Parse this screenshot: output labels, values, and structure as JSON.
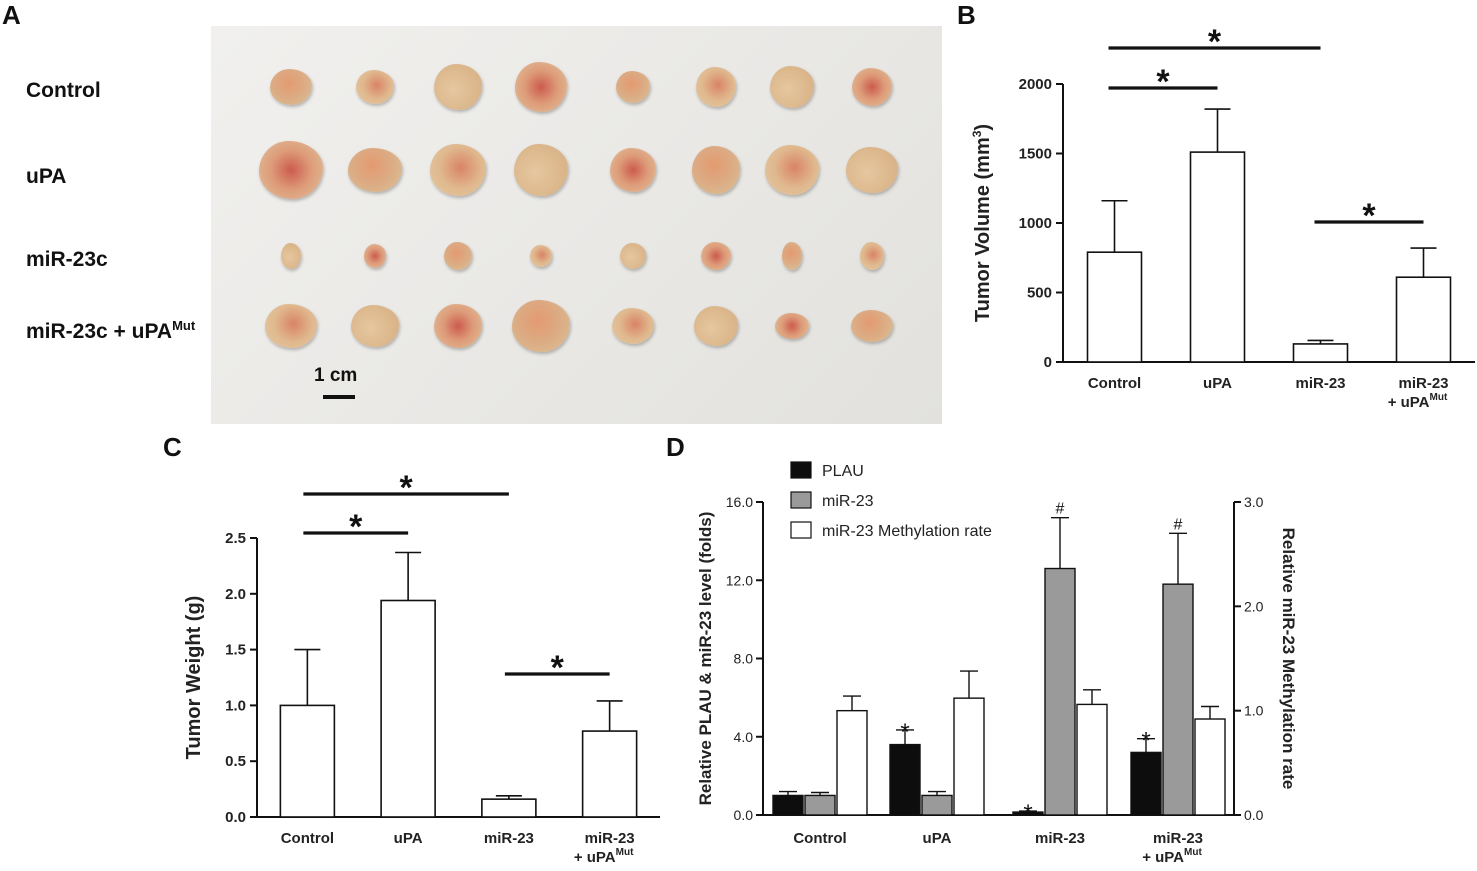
{
  "panel_letters": {
    "a": "A",
    "b": "B",
    "c": "C",
    "d": "D"
  },
  "panel_a": {
    "row_labels": [
      {
        "text": "Control",
        "sup": ""
      },
      {
        "text": "uPA",
        "sup": ""
      },
      {
        "text": "miR-23c",
        "sup": ""
      },
      {
        "text": "miR-23c + uPA",
        "sup": "Mut"
      }
    ],
    "scale_label": "1 cm"
  },
  "chart_data": [
    {
      "id": "B",
      "type": "bar",
      "categories": [
        {
          "line1": "Control",
          "line2": "",
          "sup": ""
        },
        {
          "line1": "uPA",
          "line2": "",
          "sup": ""
        },
        {
          "line1": "miR-23",
          "line2": "",
          "sup": ""
        },
        {
          "line1": "miR-23",
          "line2": "+ uPA",
          "sup": "Mut"
        }
      ],
      "values": [
        790,
        1510,
        130,
        610
      ],
      "errors": [
        370,
        310,
        25,
        210
      ],
      "ylabel": "Tumor Volume (mm",
      "ylabel_sup": "3",
      "ylabel_close": ")",
      "ylim": [
        0,
        2000
      ],
      "yticks": [
        {
          "v": 0,
          "label": "0"
        },
        {
          "v": 500,
          "label": "500"
        },
        {
          "v": 1000,
          "label": "1000"
        },
        {
          "v": 1500,
          "label": "1500"
        },
        {
          "v": 2000,
          "label": "2000"
        }
      ],
      "significance": [
        {
          "from": 0,
          "to": 2,
          "label": "*"
        },
        {
          "from": 0,
          "to": 1,
          "label": "*"
        },
        {
          "from": 2,
          "to": 3,
          "label": "*"
        }
      ]
    },
    {
      "id": "C",
      "type": "bar",
      "categories": [
        {
          "line1": "Control",
          "line2": "",
          "sup": ""
        },
        {
          "line1": "uPA",
          "line2": "",
          "sup": ""
        },
        {
          "line1": "miR-23",
          "line2": "",
          "sup": ""
        },
        {
          "line1": "miR-23",
          "line2": "+ uPA",
          "sup": "Mut"
        }
      ],
      "values": [
        1.0,
        1.94,
        0.16,
        0.77
      ],
      "errors": [
        0.5,
        0.43,
        0.03,
        0.27
      ],
      "ylabel": "Tumor Weight (g)",
      "ylim": [
        0,
        2.5
      ],
      "yticks": [
        {
          "v": 0,
          "label": "0.0"
        },
        {
          "v": 0.5,
          "label": "0.5"
        },
        {
          "v": 1.0,
          "label": "1.0"
        },
        {
          "v": 1.5,
          "label": "1.5"
        },
        {
          "v": 2.0,
          "label": "2.0"
        },
        {
          "v": 2.5,
          "label": "2.5"
        }
      ],
      "significance": [
        {
          "from": 0,
          "to": 2,
          "label": "*"
        },
        {
          "from": 0,
          "to": 1,
          "label": "*"
        },
        {
          "from": 2,
          "to": 3,
          "label": "*"
        }
      ]
    },
    {
      "id": "D",
      "type": "bar",
      "categories": [
        {
          "line1": "Control",
          "line2": "",
          "sup": ""
        },
        {
          "line1": "uPA",
          "line2": "",
          "sup": ""
        },
        {
          "line1": "miR-23",
          "line2": "",
          "sup": ""
        },
        {
          "line1": "miR-23",
          "line2": "+ uPA",
          "sup": "Mut"
        }
      ],
      "series": [
        {
          "name": "PLAU",
          "axis": "left",
          "color": "#0d0d0d",
          "values": [
            1.0,
            3.6,
            0.15,
            3.2
          ],
          "errors": [
            0.2,
            0.75,
            0.05,
            0.7
          ],
          "marks": [
            "",
            "*",
            "*",
            "*"
          ]
        },
        {
          "name": "miR-23",
          "axis": "left",
          "color": "#9a9a9a",
          "values": [
            1.0,
            1.0,
            12.6,
            11.8
          ],
          "errors": [
            0.15,
            0.2,
            2.6,
            2.6
          ],
          "marks": [
            "",
            "",
            "#",
            "#"
          ]
        },
        {
          "name": "miR-23 Methylation rate",
          "axis": "right",
          "color": "#ffffff",
          "values": [
            1.0,
            1.12,
            1.06,
            0.92
          ],
          "errors": [
            0.14,
            0.26,
            0.14,
            0.12
          ],
          "marks": [
            "",
            "",
            "",
            ""
          ]
        }
      ],
      "ylabel": "Relative PLAU & miR-23 level (folds)",
      "ylabel_right": "Relative miR-23 Methylation rate",
      "ylim": [
        0,
        16
      ],
      "ylim_right": [
        0,
        3
      ],
      "yticks": [
        {
          "v": 0,
          "label": "0.0"
        },
        {
          "v": 4,
          "label": "4.0"
        },
        {
          "v": 8,
          "label": "8.0"
        },
        {
          "v": 12,
          "label": "12.0"
        },
        {
          "v": 16,
          "label": "16.0"
        }
      ],
      "yticks_right": [
        {
          "v": 0,
          "label": "0.0"
        },
        {
          "v": 1,
          "label": "1.0"
        },
        {
          "v": 2,
          "label": "2.0"
        },
        {
          "v": 3,
          "label": "3.0"
        }
      ],
      "legend_position": "top-left"
    }
  ]
}
